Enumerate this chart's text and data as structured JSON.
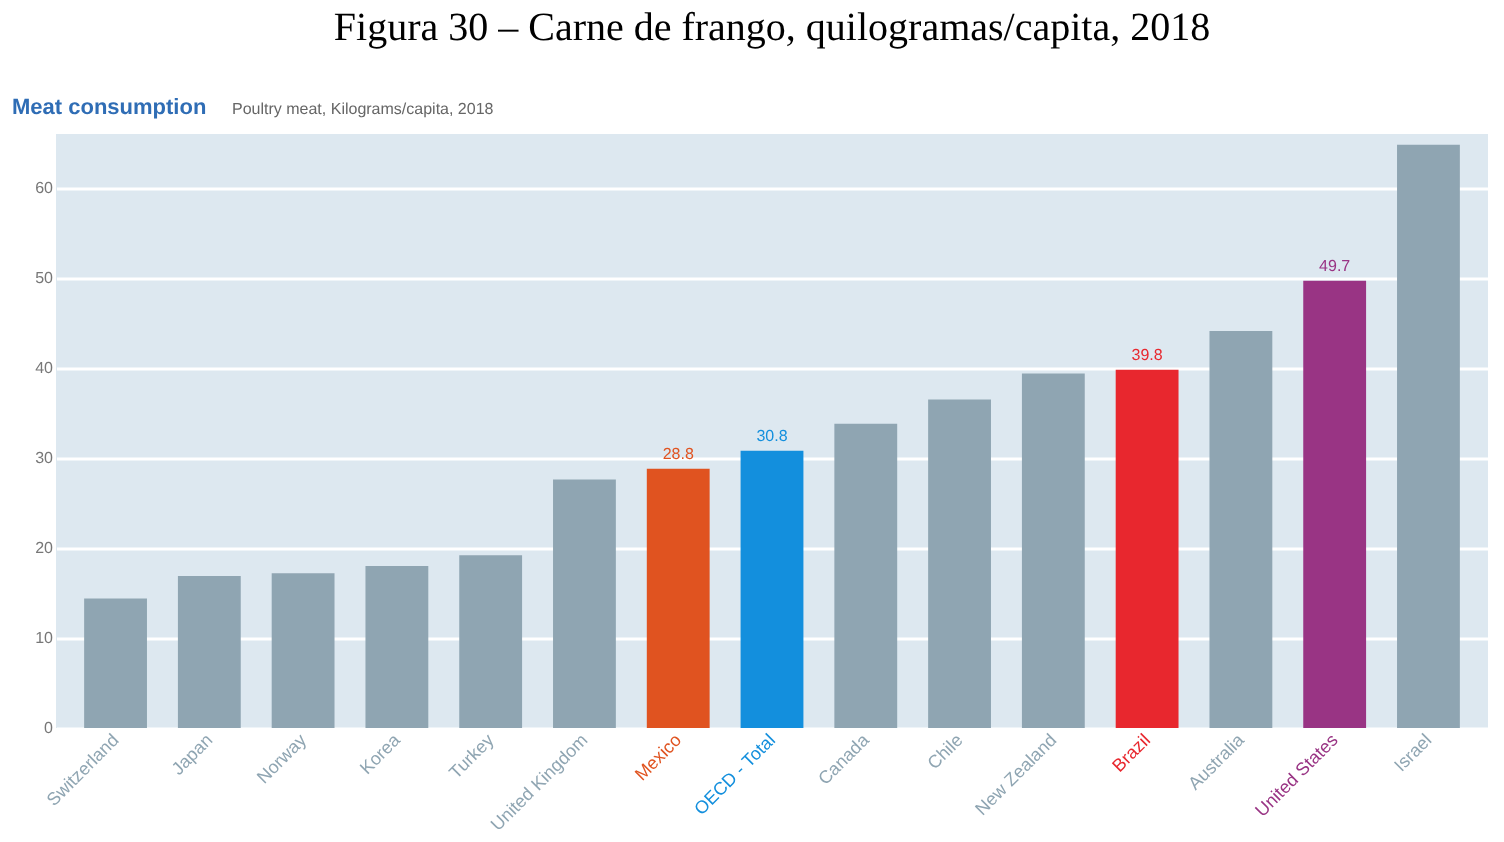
{
  "chart_data": {
    "type": "bar",
    "title": "Figura 30 – Carne de frango, quilogramas/capita, 2018",
    "subtitle": "Meat consumption",
    "annotations": [
      "Poultry meat, Kilograms/capita, 2018"
    ],
    "categories": [
      "Switzerland",
      "Japan",
      "Norway",
      "Korea",
      "Turkey",
      "United Kingdom",
      "Mexico",
      "OECD - Total",
      "Canada",
      "Chile",
      "New Zealand",
      "Brazil",
      "Australia",
      "United States",
      "Israel"
    ],
    "values": [
      14.4,
      16.9,
      17.2,
      18.0,
      19.2,
      27.6,
      28.8,
      30.8,
      33.8,
      36.5,
      39.4,
      39.8,
      44.1,
      49.7,
      64.8
    ],
    "colors": [
      "#8fa5b2",
      "#8fa5b2",
      "#8fa5b2",
      "#8fa5b2",
      "#8fa5b2",
      "#8fa5b2",
      "#e05320",
      "#138fdd",
      "#8fa5b2",
      "#8fa5b2",
      "#8fa5b2",
      "#e8272e",
      "#8fa5b2",
      "#993484",
      "#8fa5b2"
    ],
    "value_labels": [
      null,
      null,
      null,
      null,
      null,
      null,
      "28.8",
      "30.8",
      null,
      null,
      null,
      "39.8",
      null,
      "49.7",
      null
    ],
    "ylim": [
      0,
      66
    ],
    "yticks": [
      0,
      10,
      20,
      30,
      40,
      50,
      60
    ],
    "grid": "y"
  }
}
